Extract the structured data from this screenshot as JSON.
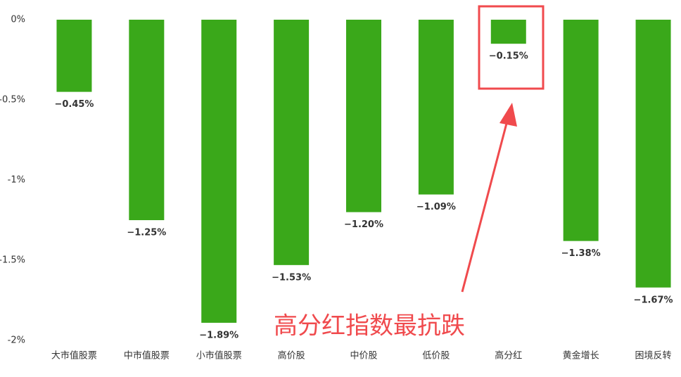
{
  "chart_data": {
    "type": "bar",
    "categories": [
      "大市值股票",
      "中市值股票",
      "小市值股票",
      "高价股",
      "中价股",
      "低价股",
      "高分红",
      "黄金增长",
      "困境反转"
    ],
    "values": [
      -0.45,
      -1.25,
      -1.89,
      -1.53,
      -1.2,
      -1.09,
      -0.15,
      -1.38,
      -1.67
    ],
    "value_labels": [
      "−0.45%",
      "−1.25%",
      "−1.89%",
      "−1.53%",
      "−1.20%",
      "−1.09%",
      "−0.15%",
      "−1.38%",
      "−1.67%"
    ],
    "color": "#3aa81a",
    "ylim": [
      -2,
      0
    ],
    "yticks": [
      {
        "value": 0,
        "label": "0%"
      },
      {
        "value": -0.5,
        "label": "-0.5%"
      },
      {
        "value": -1,
        "label": "-1%"
      },
      {
        "value": -1.5,
        "label": "-1.5%"
      },
      {
        "value": -2,
        "label": "-2%"
      }
    ],
    "annotation": "高分红指数最抗跌"
  }
}
